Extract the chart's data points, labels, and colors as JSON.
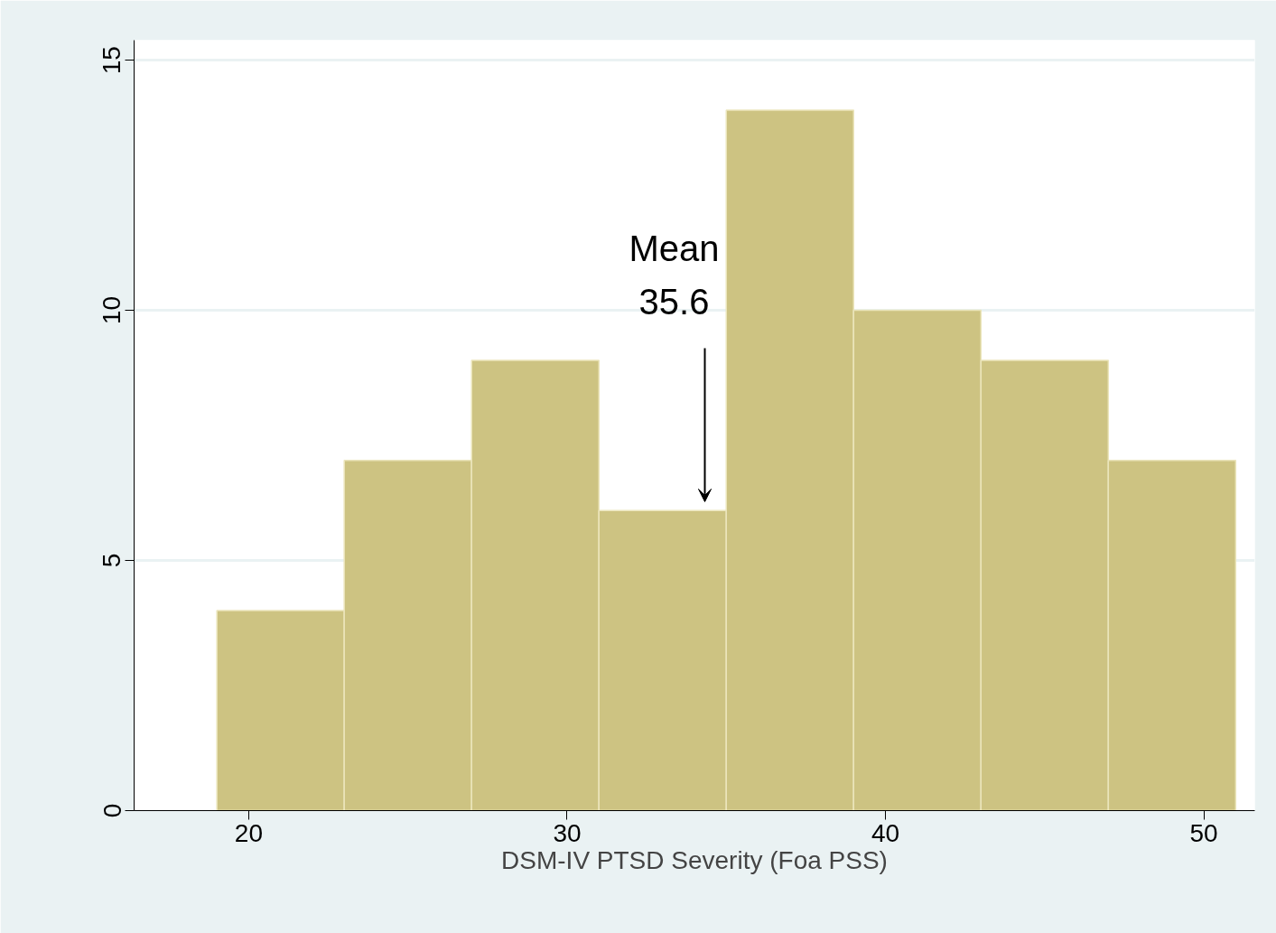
{
  "chart_data": {
    "type": "histogram",
    "xlabel": "DSM-IV PTSD Severity (Foa PSS)",
    "bins": [
      19,
      23,
      27,
      31,
      35,
      39,
      43,
      47,
      51
    ],
    "values": [
      4,
      7,
      9,
      6,
      14,
      10,
      9,
      7
    ],
    "color": "#cdc382",
    "xlim": [
      16.4,
      51.6
    ],
    "ylim": [
      0,
      15.4
    ],
    "xticks": [
      20,
      30,
      40,
      50
    ],
    "yticks": [
      0,
      5,
      10,
      15
    ],
    "grid": "y",
    "annotations": [
      "Mean\n35.6"
    ]
  }
}
